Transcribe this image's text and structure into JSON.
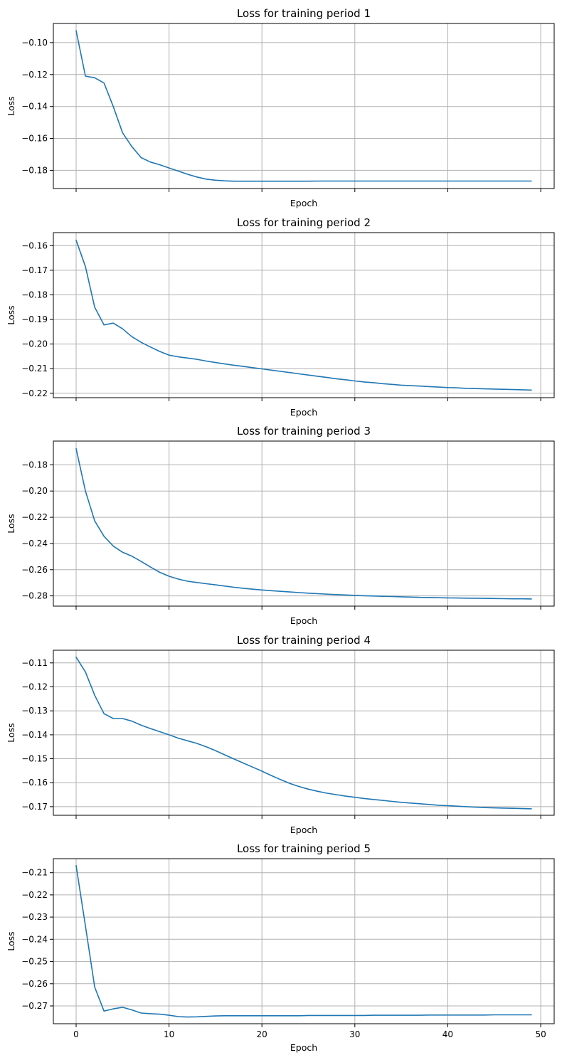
{
  "chart_data": [
    {
      "type": "line",
      "title": "Loss for training period 1",
      "xlabel": "Epoch",
      "ylabel": "Loss",
      "xlim": [
        -2.45,
        51.45
      ],
      "ylim": [
        -0.1914,
        -0.088
      ],
      "xticks": [
        0,
        10,
        20,
        30,
        40,
        50
      ],
      "xticklabels": [],
      "yticks": [
        -0.18,
        -0.16,
        -0.14,
        -0.12,
        -0.1
      ],
      "yticklabels": [
        "−0.18",
        "−0.16",
        "−0.14",
        "−0.12",
        "−0.10"
      ],
      "grid": true,
      "series": [
        {
          "color": "#1f77b4",
          "x": [
            0,
            1,
            2,
            3,
            4,
            5,
            6,
            7,
            8,
            9,
            10,
            11,
            12,
            13,
            14,
            15,
            16,
            17,
            18,
            19,
            20,
            21,
            22,
            23,
            24,
            25,
            26,
            27,
            28,
            29,
            30,
            31,
            32,
            33,
            34,
            35,
            36,
            37,
            38,
            39,
            40,
            41,
            42,
            43,
            44,
            45,
            46,
            47,
            48,
            49
          ],
          "y": [
            -0.0925,
            -0.121,
            -0.122,
            -0.1253,
            -0.14,
            -0.1565,
            -0.1652,
            -0.172,
            -0.1748,
            -0.1765,
            -0.1785,
            -0.1805,
            -0.1825,
            -0.1842,
            -0.1855,
            -0.1862,
            -0.1866,
            -0.1868,
            -0.1868,
            -0.1868,
            -0.1868,
            -0.1868,
            -0.1868,
            -0.1868,
            -0.1868,
            -0.1868,
            -0.1867,
            -0.1867,
            -0.1867,
            -0.1867,
            -0.1867,
            -0.1867,
            -0.1867,
            -0.1867,
            -0.1867,
            -0.1867,
            -0.1867,
            -0.1867,
            -0.1867,
            -0.1867,
            -0.1867,
            -0.1867,
            -0.1867,
            -0.1867,
            -0.1867,
            -0.1867,
            -0.1867,
            -0.1867,
            -0.1867,
            -0.1867
          ]
        }
      ]
    },
    {
      "type": "line",
      "title": "Loss for training period 2",
      "xlabel": "Epoch",
      "ylabel": "Loss",
      "xlim": [
        -2.45,
        51.45
      ],
      "ylim": [
        -0.2218,
        -0.1547
      ],
      "xticks": [
        0,
        10,
        20,
        30,
        40,
        50
      ],
      "xticklabels": [],
      "yticks": [
        -0.22,
        -0.21,
        -0.2,
        -0.19,
        -0.18,
        -0.17,
        -0.16
      ],
      "yticklabels": [
        "−0.22",
        "−0.21",
        "−0.20",
        "−0.19",
        "−0.18",
        "−0.17",
        "−0.16"
      ],
      "grid": true,
      "series": [
        {
          "color": "#1f77b4",
          "x": [
            0,
            1,
            2,
            3,
            4,
            5,
            6,
            7,
            8,
            9,
            10,
            11,
            12,
            13,
            14,
            15,
            16,
            17,
            18,
            19,
            20,
            21,
            22,
            23,
            24,
            25,
            26,
            27,
            28,
            29,
            30,
            31,
            32,
            33,
            34,
            35,
            36,
            37,
            38,
            39,
            40,
            41,
            42,
            43,
            44,
            45,
            46,
            47,
            48,
            49
          ],
          "y": [
            -0.1578,
            -0.1685,
            -0.185,
            -0.1922,
            -0.1915,
            -0.1938,
            -0.197,
            -0.1993,
            -0.2012,
            -0.203,
            -0.2045,
            -0.2052,
            -0.2057,
            -0.2062,
            -0.2069,
            -0.2075,
            -0.2081,
            -0.2086,
            -0.2091,
            -0.2096,
            -0.2101,
            -0.2106,
            -0.2111,
            -0.2116,
            -0.2121,
            -0.2126,
            -0.2131,
            -0.2136,
            -0.2141,
            -0.2145,
            -0.215,
            -0.2154,
            -0.2157,
            -0.2161,
            -0.2164,
            -0.2167,
            -0.2169,
            -0.2171,
            -0.2173,
            -0.2175,
            -0.2177,
            -0.2178,
            -0.218,
            -0.2181,
            -0.2182,
            -0.2183,
            -0.2184,
            -0.2185,
            -0.2186,
            -0.2187
          ]
        }
      ]
    },
    {
      "type": "line",
      "title": "Loss for training period 3",
      "xlabel": "Epoch",
      "ylabel": "Loss",
      "xlim": [
        -2.45,
        51.45
      ],
      "ylim": [
        -0.2878,
        -0.1619
      ],
      "xticks": [
        0,
        10,
        20,
        30,
        40,
        50
      ],
      "xticklabels": [],
      "yticks": [
        -0.28,
        -0.26,
        -0.24,
        -0.22,
        -0.2,
        -0.18
      ],
      "yticklabels": [
        "−0.28",
        "−0.26",
        "−0.24",
        "−0.22",
        "−0.20",
        "−0.18"
      ],
      "grid": true,
      "series": [
        {
          "color": "#1f77b4",
          "x": [
            0,
            1,
            2,
            3,
            4,
            5,
            6,
            7,
            8,
            9,
            10,
            11,
            12,
            13,
            14,
            15,
            16,
            17,
            18,
            19,
            20,
            21,
            22,
            23,
            24,
            25,
            26,
            27,
            28,
            29,
            30,
            31,
            32,
            33,
            34,
            35,
            36,
            37,
            38,
            39,
            40,
            41,
            42,
            43,
            44,
            45,
            46,
            47,
            48,
            49
          ],
          "y": [
            -0.1677,
            -0.2,
            -0.2228,
            -0.2345,
            -0.242,
            -0.2467,
            -0.2497,
            -0.2537,
            -0.258,
            -0.262,
            -0.265,
            -0.2672,
            -0.2688,
            -0.2698,
            -0.2707,
            -0.2716,
            -0.2725,
            -0.2734,
            -0.2742,
            -0.2749,
            -0.2755,
            -0.276,
            -0.2765,
            -0.277,
            -0.2775,
            -0.2779,
            -0.2783,
            -0.2787,
            -0.279,
            -0.2793,
            -0.2796,
            -0.2799,
            -0.2801,
            -0.2803,
            -0.2805,
            -0.2807,
            -0.2809,
            -0.2811,
            -0.2812,
            -0.2814,
            -0.2815,
            -0.2816,
            -0.2817,
            -0.2818,
            -0.2819,
            -0.282,
            -0.2821,
            -0.2822,
            -0.2822,
            -0.2823
          ]
        }
      ]
    },
    {
      "type": "line",
      "title": "Loss for training period 4",
      "xlabel": "Epoch",
      "ylabel": "Loss",
      "xlim": [
        -2.45,
        51.45
      ],
      "ylim": [
        -0.1736,
        -0.1047
      ],
      "xticks": [
        0,
        10,
        20,
        30,
        40,
        50
      ],
      "xticklabels": [],
      "yticks": [
        -0.17,
        -0.16,
        -0.15,
        -0.14,
        -0.13,
        -0.12,
        -0.11
      ],
      "yticklabels": [
        "−0.17",
        "−0.16",
        "−0.15",
        "−0.14",
        "−0.13",
        "−0.12",
        "−0.11"
      ],
      "grid": true,
      "series": [
        {
          "color": "#1f77b4",
          "x": [
            0,
            1,
            2,
            3,
            4,
            5,
            6,
            7,
            8,
            9,
            10,
            11,
            12,
            13,
            14,
            15,
            16,
            17,
            18,
            19,
            20,
            21,
            22,
            23,
            24,
            25,
            26,
            27,
            28,
            29,
            30,
            31,
            32,
            33,
            34,
            35,
            36,
            37,
            38,
            39,
            40,
            41,
            42,
            43,
            44,
            45,
            46,
            47,
            48,
            49
          ],
          "y": [
            -0.1076,
            -0.1138,
            -0.1235,
            -0.1312,
            -0.1332,
            -0.1332,
            -0.1343,
            -0.136,
            -0.1374,
            -0.1387,
            -0.14,
            -0.1414,
            -0.1425,
            -0.1436,
            -0.145,
            -0.1466,
            -0.1484,
            -0.1501,
            -0.1518,
            -0.1535,
            -0.1552,
            -0.157,
            -0.1587,
            -0.1603,
            -0.1616,
            -0.1627,
            -0.1636,
            -0.1644,
            -0.165,
            -0.1656,
            -0.1661,
            -0.1666,
            -0.167,
            -0.1674,
            -0.1678,
            -0.1682,
            -0.1685,
            -0.1688,
            -0.1691,
            -0.1694,
            -0.1696,
            -0.1698,
            -0.17,
            -0.1702,
            -0.1704,
            -0.1705,
            -0.1706,
            -0.1707,
            -0.1708,
            -0.1709
          ]
        }
      ]
    },
    {
      "type": "line",
      "title": "Loss for training period 5",
      "xlabel": "Epoch",
      "ylabel": "Loss",
      "xlim": [
        -2.45,
        51.45
      ],
      "ylim": [
        -0.278,
        -0.2037
      ],
      "xticks": [
        0,
        10,
        20,
        30,
        40,
        50
      ],
      "xticklabels": [
        "0",
        "10",
        "20",
        "30",
        "40",
        "50"
      ],
      "yticks": [
        -0.27,
        -0.26,
        -0.25,
        -0.24,
        -0.23,
        -0.22,
        -0.21
      ],
      "yticklabels": [
        "−0.27",
        "−0.26",
        "−0.25",
        "−0.24",
        "−0.23",
        "−0.22",
        "−0.21"
      ],
      "grid": true,
      "series": [
        {
          "color": "#1f77b4",
          "x": [
            0,
            1,
            2,
            3,
            4,
            5,
            6,
            7,
            8,
            9,
            10,
            11,
            12,
            13,
            14,
            15,
            16,
            17,
            18,
            19,
            20,
            21,
            22,
            23,
            24,
            25,
            26,
            27,
            28,
            29,
            30,
            31,
            32,
            33,
            34,
            35,
            36,
            37,
            38,
            39,
            40,
            41,
            42,
            43,
            44,
            45,
            46,
            47,
            48,
            49
          ],
          "y": [
            -0.2068,
            -0.234,
            -0.2615,
            -0.2723,
            -0.2713,
            -0.2706,
            -0.2718,
            -0.2732,
            -0.2735,
            -0.2737,
            -0.2742,
            -0.2748,
            -0.275,
            -0.2749,
            -0.2747,
            -0.2745,
            -0.2744,
            -0.2744,
            -0.2744,
            -0.2744,
            -0.2744,
            -0.2744,
            -0.2744,
            -0.2744,
            -0.2744,
            -0.2743,
            -0.2743,
            -0.2743,
            -0.2743,
            -0.2743,
            -0.2743,
            -0.2743,
            -0.2742,
            -0.2742,
            -0.2742,
            -0.2742,
            -0.2742,
            -0.2742,
            -0.2741,
            -0.2741,
            -0.2741,
            -0.2741,
            -0.2741,
            -0.2741,
            -0.2741,
            -0.274,
            -0.274,
            -0.274,
            -0.274,
            -0.274
          ]
        }
      ]
    }
  ]
}
